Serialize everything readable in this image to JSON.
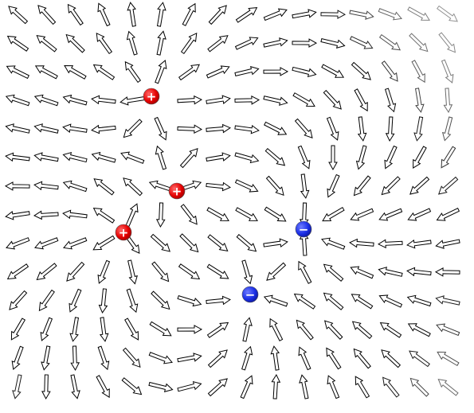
{
  "charges": [
    {
      "label": "+"
    },
    {
      "label": "+"
    },
    {
      "label": "+"
    },
    {
      "label": "−"
    },
    {
      "label": "−"
    }
  ]
}
